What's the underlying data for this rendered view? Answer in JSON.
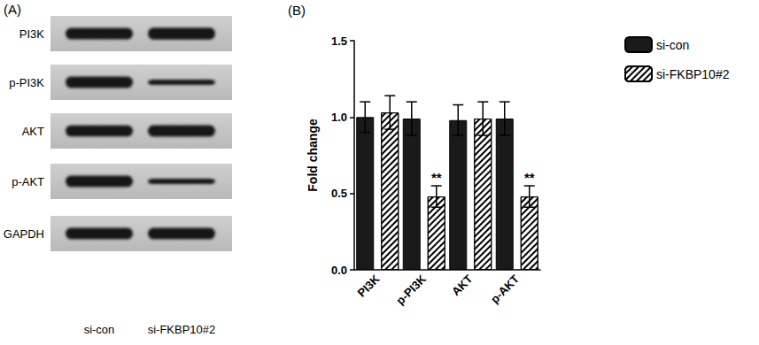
{
  "blot": {
    "panel_label": "(A)",
    "rows": [
      "PI3K",
      "p-PI3K",
      "AKT",
      "p-AKT",
      "GAPDH"
    ],
    "lanes": [
      "si-con",
      "si-FKBP10#2"
    ]
  },
  "chart_data": {
    "type": "bar",
    "annotations": [
      "(B)"
    ],
    "y_label": "Fold change",
    "categories": [
      "PI3K",
      "p-PI3K",
      "AKT",
      "p-AKT"
    ],
    "series": [
      {
        "name": "si-con",
        "color": "#1a1a1a",
        "values": [
          1.0,
          0.99,
          0.98,
          0.99
        ],
        "errors": [
          0.1,
          0.11,
          0.1,
          0.11
        ]
      },
      {
        "name": "si-FKBP10#2",
        "color": "#ffffff",
        "values": [
          1.03,
          0.48,
          0.99,
          0.48
        ],
        "errors": [
          0.11,
          0.07,
          0.11,
          0.07
        ],
        "significance": [
          null,
          "**",
          null,
          "**"
        ]
      }
    ],
    "ylim": [
      0,
      1.5
    ],
    "yticks": [
      {
        "value": 0,
        "label": "0.0"
      },
      0.5,
      {
        "value": 1,
        "label": "1.0"
      },
      1.5
    ],
    "grid": false,
    "legend": "upper right"
  }
}
